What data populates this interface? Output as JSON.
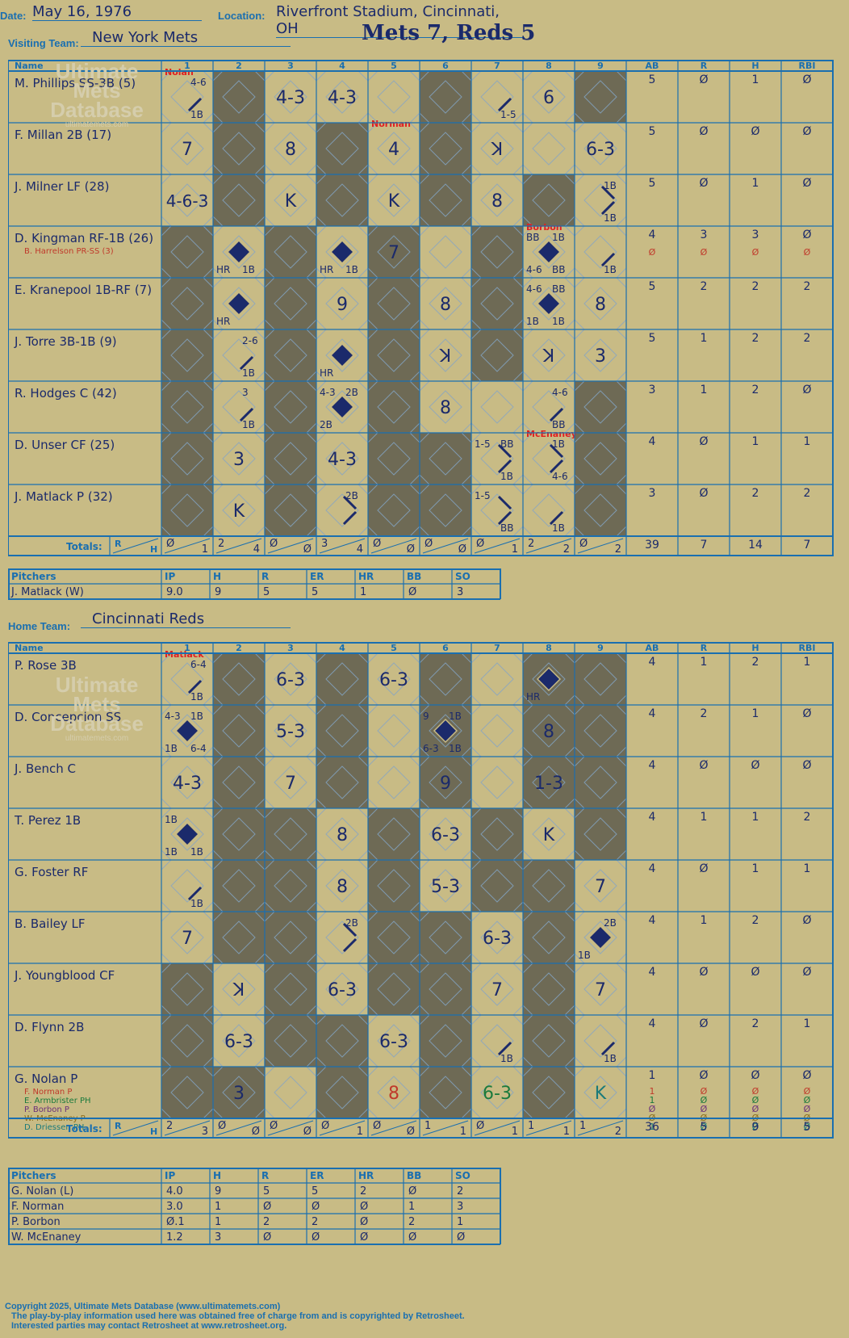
{
  "header": {
    "date_label": "Date:",
    "date": "May 16, 1976",
    "location_label": "Location:",
    "location": "Riverfront Stadium, Cincinnati, OH",
    "visiting_label": "Visiting Team:",
    "visiting_team": "New York Mets",
    "home_label": "Home Team:",
    "home_team": "Cincinnati Reds",
    "game_title": "Mets 7, Reds 5"
  },
  "watermark": {
    "line1": "Ultimate",
    "line2": "Mets",
    "line3": "Database",
    "url": "ultimatemets.com"
  },
  "columns": {
    "name": "Name",
    "innings": [
      "1",
      "2",
      "3",
      "4",
      "5",
      "6",
      "7",
      "8",
      "9"
    ],
    "stats": [
      "AB",
      "R",
      "H",
      "RBI"
    ],
    "totals_label": "Totals:",
    "r_label": "R",
    "h_label": "H"
  },
  "pitcher_columns": [
    "Pitchers",
    "IP",
    "H",
    "R",
    "ER",
    "HR",
    "BB",
    "SO"
  ],
  "visiting": {
    "shaded": [
      [
        2,
        6,
        9
      ],
      [
        2,
        4,
        6
      ],
      [
        2,
        4,
        6,
        8
      ],
      [
        1,
        3,
        5,
        7
      ],
      [
        1,
        3,
        5,
        7
      ],
      [
        1,
        3,
        5,
        7
      ],
      [
        1,
        3,
        5,
        9
      ],
      [
        1,
        3,
        5,
        6,
        9
      ],
      [
        1,
        3,
        5,
        6,
        9
      ]
    ],
    "batters": [
      {
        "name": "M. Phillips SS-3B (5)",
        "stats": [
          "5",
          "Ø",
          "1",
          "Ø"
        ],
        "subs": [],
        "cells": {
          "1": {
            "bases": 1,
            "marks": [
              [
                "tr",
                "4-6"
              ],
              [
                "br",
                "1B"
              ]
            ]
          },
          "3": {
            "big": "4-3"
          },
          "4": {
            "big": "4-3"
          },
          "7": {
            "bases": 1,
            "marks": [
              [
                "br",
                "1-5"
              ]
            ]
          },
          "8": {
            "big": "6"
          }
        }
      },
      {
        "name": "F. Millan 2B (17)",
        "stats": [
          "5",
          "Ø",
          "Ø",
          "Ø"
        ],
        "subs": [],
        "cells": {
          "1": {
            "big": "7"
          },
          "3": {
            "big": "8"
          },
          "5": {
            "big": "4"
          },
          "7": {
            "big": "ꓘ"
          },
          "9": {
            "big": "6-3"
          }
        }
      },
      {
        "name": "J. Milner LF (28)",
        "stats": [
          "5",
          "Ø",
          "1",
          "Ø"
        ],
        "subs": [],
        "cells": {
          "1": {
            "big": "4-6-3"
          },
          "3": {
            "big": "K"
          },
          "5": {
            "big": "K"
          },
          "7": {
            "big": "8"
          },
          "9": {
            "bases": 2,
            "marks": [
              [
                "tr",
                "1B"
              ],
              [
                "br",
                "1B"
              ]
            ]
          }
        }
      },
      {
        "name": "D. Kingman RF-1B (26)",
        "stats": [
          "4",
          "3",
          "3",
          "Ø"
        ],
        "subs": [
          {
            "name": "B. Harrelson PR-SS (3)",
            "color": "#c0392b",
            "stats": [
              "Ø",
              "Ø",
              "Ø",
              "Ø"
            ]
          }
        ],
        "cells": {
          "2": {
            "run": true,
            "marks": [
              [
                "bl",
                "HR"
              ],
              [
                "br",
                "1B"
              ]
            ]
          },
          "4": {
            "run": true,
            "marks": [
              [
                "bl",
                "HR"
              ],
              [
                "br",
                "1B"
              ]
            ]
          },
          "5": {
            "big": "7"
          },
          "8": {
            "run": true,
            "marks": [
              [
                "tl",
                "BB"
              ],
              [
                "tr",
                "1B"
              ],
              [
                "bl",
                "4-6"
              ],
              [
                "br",
                "BB"
              ]
            ]
          },
          "9": {
            "bases": 1,
            "marks": [
              [
                "br",
                "1B"
              ]
            ]
          }
        }
      },
      {
        "name": "E. Kranepool 1B-RF (7)",
        "stats": [
          "5",
          "2",
          "2",
          "2"
        ],
        "subs": [],
        "cells": {
          "2": {
            "run": true,
            "marks": [
              [
                "bl",
                "HR"
              ]
            ]
          },
          "4": {
            "big": "9"
          },
          "6": {
            "big": "8"
          },
          "8": {
            "run": true,
            "marks": [
              [
                "tl",
                "4-6"
              ],
              [
                "tr",
                "BB"
              ],
              [
                "bl",
                "1B"
              ],
              [
                "br",
                "1B"
              ]
            ]
          },
          "9": {
            "big": "8"
          }
        }
      },
      {
        "name": "J. Torre 3B-1B (9)",
        "stats": [
          "5",
          "1",
          "2",
          "2"
        ],
        "subs": [],
        "cells": {
          "2": {
            "bases": 1,
            "marks": [
              [
                "tr",
                "2-6"
              ],
              [
                "br",
                "1B"
              ]
            ]
          },
          "4": {
            "run": true,
            "marks": [
              [
                "bl",
                "HR"
              ]
            ]
          },
          "6": {
            "big": "ꓘ"
          },
          "8": {
            "big": "ꓘ"
          },
          "9": {
            "big": "3"
          }
        }
      },
      {
        "name": "R. Hodges C (42)",
        "stats": [
          "3",
          "1",
          "2",
          "Ø"
        ],
        "subs": [],
        "cells": {
          "2": {
            "bases": 1,
            "marks": [
              [
                "tr",
                "3"
              ],
              [
                "br",
                "1B"
              ]
            ]
          },
          "4": {
            "run": true,
            "marks": [
              [
                "tl",
                "4-3"
              ],
              [
                "tr",
                "2B"
              ],
              [
                "bl",
                "2B"
              ]
            ]
          },
          "6": {
            "big": "8"
          },
          "8": {
            "bases": 1,
            "marks": [
              [
                "tr",
                "4-6"
              ],
              [
                "br",
                "BB"
              ]
            ]
          }
        }
      },
      {
        "name": "D. Unser CF (25)",
        "stats": [
          "4",
          "Ø",
          "1",
          "1"
        ],
        "subs": [],
        "cells": {
          "2": {
            "big": "3"
          },
          "4": {
            "big": "4-3"
          },
          "7": {
            "bases": 2,
            "marks": [
              [
                "tl",
                "1-5"
              ],
              [
                "tr",
                "BB"
              ],
              [
                "br",
                "1B"
              ]
            ]
          },
          "8": {
            "bases": 2,
            "marks": [
              [
                "tr",
                "1B"
              ],
              [
                "br",
                "4-6"
              ]
            ]
          }
        }
      },
      {
        "name": "J. Matlack P (32)",
        "stats": [
          "3",
          "Ø",
          "2",
          "2"
        ],
        "subs": [],
        "cells": {
          "2": {
            "big": "K"
          },
          "4": {
            "bases": 2,
            "marks": [
              [
                "tr",
                "2B"
              ]
            ]
          },
          "7": {
            "bases": 2,
            "marks": [
              [
                "tl",
                "1-5"
              ],
              [
                "br",
                "BB"
              ]
            ]
          },
          "8": {
            "bases": 1,
            "marks": [
              [
                "br",
                "1B"
              ]
            ]
          }
        }
      }
    ],
    "notes": [
      {
        "row": 0,
        "col": 1,
        "text": "Nolan",
        "color": "#e02020"
      },
      {
        "row": 1,
        "col": 5,
        "text": "Norman",
        "color": "#e02020"
      },
      {
        "row": 3,
        "col": 8,
        "text": "Borbon",
        "color": "#e02020"
      },
      {
        "row": 7,
        "col": 8,
        "text": "McEnaney",
        "color": "#e02020"
      }
    ],
    "totals": [
      [
        "Ø",
        "1"
      ],
      [
        "2",
        "4"
      ],
      [
        "Ø",
        "Ø"
      ],
      [
        "3",
        "4"
      ],
      [
        "Ø",
        "Ø"
      ],
      [
        "Ø",
        "Ø"
      ],
      [
        "Ø",
        "1"
      ],
      [
        "2",
        "2"
      ],
      [
        "Ø",
        "2"
      ]
    ],
    "stat_totals": [
      "39",
      "7",
      "14",
      "7"
    ],
    "pitchers": [
      {
        "name": "J. Matlack (W)",
        "stats": [
          "9.0",
          "9",
          "5",
          "5",
          "1",
          "Ø",
          "3"
        ]
      }
    ]
  },
  "home": {
    "shaded": [
      [
        2,
        4,
        6,
        8,
        9
      ],
      [
        2,
        4,
        6,
        8,
        9
      ],
      [
        2,
        4,
        6,
        8,
        9
      ],
      [
        2,
        3,
        5,
        7,
        9
      ],
      [
        2,
        3,
        5,
        7,
        8
      ],
      [
        2,
        3,
        5,
        6,
        8
      ],
      [
        1,
        3,
        5,
        6,
        8
      ],
      [
        1,
        3,
        4,
        6,
        8
      ],
      [
        1,
        2,
        4,
        6,
        8
      ]
    ],
    "batters": [
      {
        "name": "P. Rose 3B",
        "stats": [
          "4",
          "1",
          "2",
          "1"
        ],
        "subs": [],
        "cells": {
          "1": {
            "bases": 1,
            "marks": [
              [
                "tr",
                "6-4"
              ],
              [
                "br",
                "1B"
              ]
            ]
          },
          "3": {
            "big": "6-3"
          },
          "5": {
            "big": "6-3"
          },
          "8": {
            "run": true,
            "marks": [
              [
                "bl",
                "HR"
              ]
            ]
          }
        }
      },
      {
        "name": "D. Concepcion SS",
        "stats": [
          "4",
          "2",
          "1",
          "Ø"
        ],
        "subs": [],
        "cells": {
          "1": {
            "run": true,
            "marks": [
              [
                "tl",
                "4-3"
              ],
              [
                "tr",
                "1B"
              ],
              [
                "bl",
                "1B"
              ],
              [
                "br",
                "6-4"
              ]
            ]
          },
          "3": {
            "big": "5-3"
          },
          "6": {
            "run": true,
            "marks": [
              [
                "tl",
                "9"
              ],
              [
                "tr",
                "1B"
              ],
              [
                "bl",
                "6-3"
              ],
              [
                "br",
                "1B"
              ]
            ]
          },
          "8": {
            "big": "8"
          }
        }
      },
      {
        "name": "J. Bench C",
        "stats": [
          "4",
          "Ø",
          "Ø",
          "Ø"
        ],
        "subs": [],
        "cells": {
          "1": {
            "big": "4-3"
          },
          "3": {
            "big": "7"
          },
          "6": {
            "big": "9"
          },
          "8": {
            "big": "1-3"
          }
        }
      },
      {
        "name": "T. Perez 1B",
        "stats": [
          "4",
          "1",
          "1",
          "2"
        ],
        "subs": [],
        "cells": {
          "1": {
            "run": true,
            "marks": [
              [
                "tl",
                "1B"
              ],
              [
                "bl",
                "1B"
              ],
              [
                "br",
                "1B"
              ]
            ]
          },
          "4": {
            "big": "8"
          },
          "6": {
            "big": "6-3"
          },
          "8": {
            "big": "K"
          }
        }
      },
      {
        "name": "G. Foster RF",
        "stats": [
          "4",
          "Ø",
          "1",
          "1"
        ],
        "subs": [],
        "cells": {
          "1": {
            "bases": 1,
            "marks": [
              [
                "br",
                "1B"
              ]
            ]
          },
          "4": {
            "big": "8"
          },
          "6": {
            "big": "5-3"
          },
          "9": {
            "big": "7"
          }
        }
      },
      {
        "name": "B. Bailey LF",
        "stats": [
          "4",
          "1",
          "2",
          "Ø"
        ],
        "subs": [],
        "cells": {
          "1": {
            "big": "7"
          },
          "4": {
            "bases": 2,
            "marks": [
              [
                "tr",
                "2B"
              ]
            ]
          },
          "7": {
            "big": "6-3"
          },
          "9": {
            "run": true,
            "marks": [
              [
                "tr",
                "2B"
              ],
              [
                "bl",
                "1B"
              ]
            ]
          }
        }
      },
      {
        "name": "J. Youngblood CF",
        "stats": [
          "4",
          "Ø",
          "Ø",
          "Ø"
        ],
        "subs": [],
        "cells": {
          "2": {
            "big": "ꓘ"
          },
          "4": {
            "big": "6-3"
          },
          "7": {
            "big": "7"
          },
          "9": {
            "big": "7"
          }
        }
      },
      {
        "name": "D. Flynn 2B",
        "stats": [
          "4",
          "Ø",
          "2",
          "1"
        ],
        "subs": [],
        "cells": {
          "2": {
            "big": "6-3"
          },
          "5": {
            "big": "6-3"
          },
          "7": {
            "bases": 1,
            "marks": [
              [
                "br",
                "1B"
              ]
            ]
          },
          "9": {
            "bases": 1,
            "marks": [
              [
                "br",
                "1B"
              ]
            ]
          }
        }
      },
      {
        "name": "G. Nolan P",
        "stats": [
          "1",
          "Ø",
          "Ø",
          "Ø"
        ],
        "subs": [
          {
            "name": "F. Norman P",
            "color": "#c0392b",
            "stats": [
              "1",
              "Ø",
              "Ø",
              "Ø"
            ]
          },
          {
            "name": "E. Armbrister PH",
            "color": "#1a7a3c",
            "stats": [
              "1",
              "Ø",
              "Ø",
              "Ø"
            ]
          },
          {
            "name": "P. Borbon P",
            "color": "#6b2f7a",
            "stats": [
              "Ø",
              "Ø",
              "Ø",
              "Ø"
            ]
          },
          {
            "name": "W. McEnaney P",
            "color": "#8a6d1a",
            "stats": [
              "Ø",
              "Ø",
              "Ø",
              "Ø"
            ]
          },
          {
            "name": "D. Driessen PH",
            "color": "#1a7a7a",
            "stats": [
              "1",
              "Ø",
              "Ø",
              "Ø"
            ]
          }
        ],
        "cells": {
          "2": {
            "big": "3"
          },
          "5": {
            "big": "8",
            "color": "#c0392b"
          },
          "7": {
            "big": "6-3",
            "color": "#1a7a3c"
          },
          "9": {
            "big": "K",
            "color": "#1a7a7a"
          }
        }
      }
    ],
    "notes": [
      {
        "row": 0,
        "col": 1,
        "text": "Matlack",
        "color": "#e02020"
      }
    ],
    "totals": [
      [
        "2",
        "3"
      ],
      [
        "Ø",
        "Ø"
      ],
      [
        "Ø",
        "Ø"
      ],
      [
        "Ø",
        "1"
      ],
      [
        "Ø",
        "Ø"
      ],
      [
        "1",
        "1"
      ],
      [
        "Ø",
        "1"
      ],
      [
        "1",
        "1"
      ],
      [
        "1",
        "2"
      ]
    ],
    "stat_totals": [
      "36",
      "5",
      "9",
      "5"
    ],
    "pitchers": [
      {
        "name": "G. Nolan (L)",
        "stats": [
          "4.0",
          "9",
          "5",
          "5",
          "2",
          "Ø",
          "2"
        ]
      },
      {
        "name": "F. Norman",
        "stats": [
          "3.0",
          "1",
          "Ø",
          "Ø",
          "Ø",
          "1",
          "3"
        ]
      },
      {
        "name": "P. Borbon",
        "stats": [
          "Ø.1",
          "1",
          "2",
          "2",
          "Ø",
          "2",
          "1"
        ]
      },
      {
        "name": "W. McEnaney",
        "stats": [
          "1.2",
          "3",
          "Ø",
          "Ø",
          "Ø",
          "Ø",
          "Ø"
        ]
      }
    ]
  },
  "footer": {
    "line1": "Copyright 2025, Ultimate Mets Database (www.ultimatemets.com)",
    "line2": "The play-by-play information used here was obtained free of charge from and is copyrighted by Retrosheet.",
    "line3": "Interested parties may contact Retrosheet at www.retrosheet.org."
  }
}
